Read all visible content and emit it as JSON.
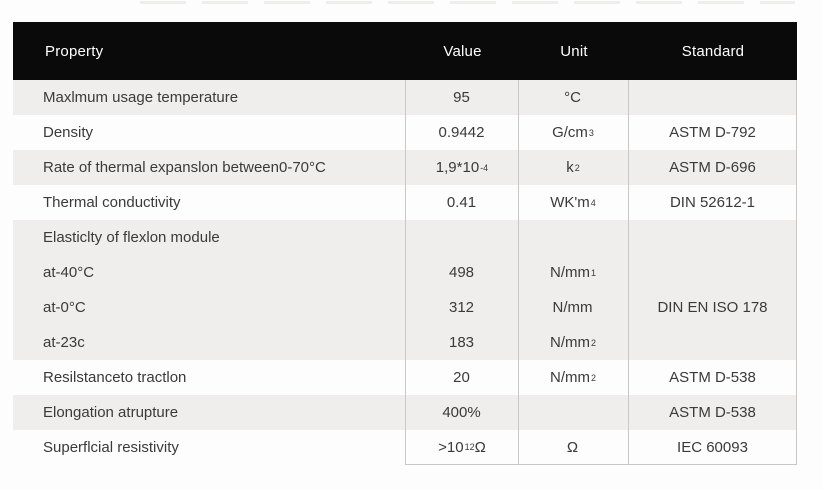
{
  "header": {
    "columns": [
      "Property",
      "Value",
      "Unit",
      "Standard"
    ]
  },
  "table": {
    "rows": [
      {
        "property": "Maxlmum usage temperature",
        "value": {
          "t": "95"
        },
        "unit": {
          "t": "°C"
        },
        "standard": ""
      },
      {
        "property": "Density",
        "value": {
          "t": "0.9442"
        },
        "unit": {
          "t": "G/cm",
          "s": "3"
        },
        "standard": "ASTM D-792"
      },
      {
        "property": "Rate of thermal expanslon between0-70°C",
        "value": {
          "t": "1,9*10",
          "s": "-4"
        },
        "unit": {
          "t": "k",
          "s": "2"
        },
        "standard": "ASTM D-696"
      },
      {
        "property": "Thermal conductivity",
        "value": {
          "t": "0.41"
        },
        "unit": {
          "t": "WK'm",
          "s": "4"
        },
        "standard": "DIN 52612-1"
      },
      {
        "property": "Elasticlty of flexlon module",
        "value": {},
        "unit": {},
        "standard": ""
      },
      {
        "property": "at-40°C",
        "value": {
          "t": "498"
        },
        "unit": {
          "t": "N/mm",
          "s": "1"
        },
        "standard": ""
      },
      {
        "property": "at-0°C",
        "value": {
          "t": "312"
        },
        "unit": {
          "t": "N/mm"
        },
        "standard": "DIN EN ISO 178"
      },
      {
        "property": "at-23c",
        "value": {
          "t": "183"
        },
        "unit": {
          "t": "N/mm",
          "s": "2"
        },
        "standard": ""
      },
      {
        "property": "Resilstanceto tractlon",
        "value": {
          "t": "20"
        },
        "unit": {
          "t": "N/mm",
          "s": "2"
        },
        "standard": "ASTM D-538"
      },
      {
        "property": "Elongation atrupture",
        "value": {
          "t": "400%"
        },
        "unit": {},
        "standard": "ASTM D-538"
      },
      {
        "property": "Superflcial resistivity",
        "value": {
          "t": ">10",
          "s": "12",
          "t2": "Ω"
        },
        "unit": {
          "t": "Ω"
        },
        "standard": "IEC 60093"
      }
    ]
  },
  "colors": {
    "header_bg": "#0a0a0a",
    "header_text": "#ffffff",
    "row_shade": "#efeeec",
    "body_text": "#3a3a3a",
    "grid_line": "#c9c8c5"
  }
}
